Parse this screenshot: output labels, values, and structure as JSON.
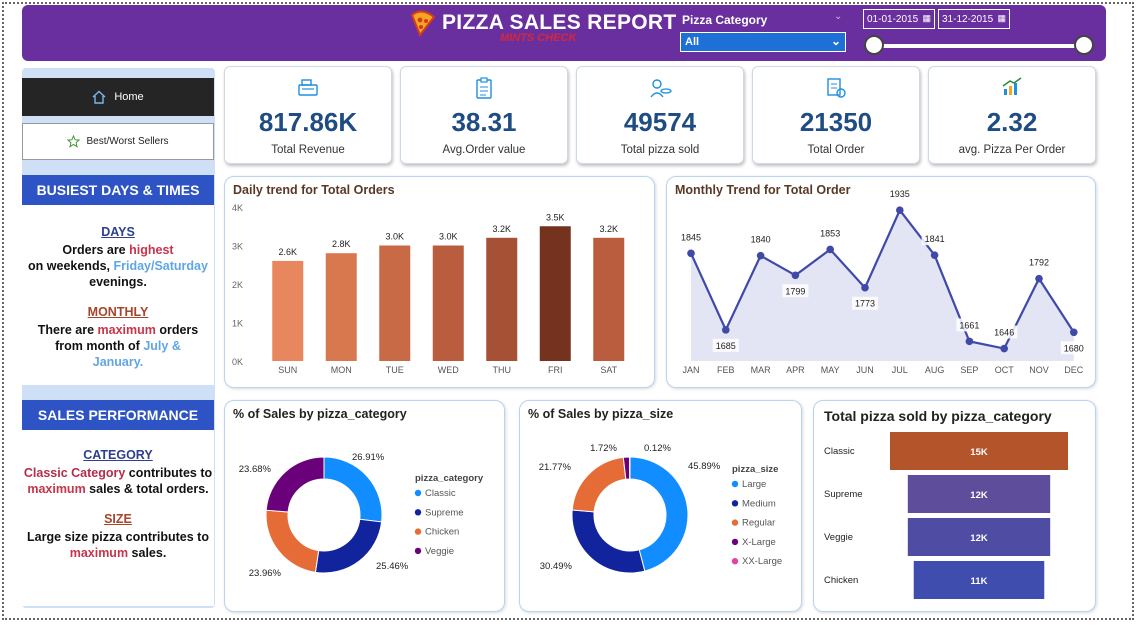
{
  "header": {
    "title": "PIZZA SALES REPORT",
    "subtitle": "MINTS CHECK",
    "category_label": "Pizza Category",
    "category_value": "All",
    "date_start": "01-01-2015",
    "date_end": "31-12-2015"
  },
  "nav": {
    "home": "Home",
    "best_worst": "Best/Worst Sellers"
  },
  "busiest": {
    "title": "BUSIEST DAYS & TIMES",
    "days_head": "DAYS",
    "days_l1a": "Orders are ",
    "days_l1b": "highest",
    "days_l2a": "on weekends, ",
    "days_l2b": "Friday/Saturday",
    "days_l3": "evenings.",
    "monthly_head": "MONTHLY",
    "monthly_l1a": "There are ",
    "monthly_l1b": "maximum",
    "monthly_l1c": " orders",
    "monthly_l2a": "from month of ",
    "monthly_l2b": "July &",
    "monthly_l3": "January."
  },
  "performance": {
    "title": "SALES PERFORMANCE",
    "category_head": "CATEGORY",
    "cat_l1a": "Classic Category",
    "cat_l1b": " contributes to",
    "cat_l2a": "maximum",
    "cat_l2b": " sales & total orders.",
    "size_head": "SIZE",
    "size_l1": "Large size pizza contributes to",
    "size_l2": "maximum",
    "size_l2b": " sales."
  },
  "kpis": [
    {
      "value": "817.86K",
      "label": "Total Revenue",
      "icon": "cash-register-icon"
    },
    {
      "value": "38.31",
      "label": "Avg.Order value",
      "icon": "clipboard-icon"
    },
    {
      "value": "49574",
      "label": "Total pizza sold",
      "icon": "pizza-chef-icon"
    },
    {
      "value": "21350",
      "label": "Total Order",
      "icon": "order-list-icon"
    },
    {
      "value": "2.32",
      "label": "avg. Pizza Per Order",
      "icon": "growth-chart-icon"
    }
  ],
  "colors": {
    "header": "#6a2f9e",
    "accent_blue": "#2d53c5",
    "kpi_value": "#1f4c83"
  },
  "chart_data": [
    {
      "type": "bar",
      "title": "Daily trend for Total Orders",
      "categories": [
        "SUN",
        "MON",
        "TUE",
        "WED",
        "THU",
        "FRI",
        "SAT"
      ],
      "values": [
        2.6,
        2.8,
        3.0,
        3.0,
        3.2,
        3.5,
        3.2
      ],
      "labels": [
        "2.6K",
        "2.8K",
        "3.0K",
        "3.0K",
        "3.2K",
        "3.5K",
        "3.2K"
      ],
      "colors": [
        "#e8875d",
        "#d8784f",
        "#c96a46",
        "#b95d3e",
        "#a65036",
        "#74321f",
        "#b95d3e"
      ],
      "yticks": [
        "0K",
        "1K",
        "2K",
        "3K",
        "4K"
      ],
      "ylim": [
        0,
        4
      ]
    },
    {
      "type": "area",
      "title": "Monthly Trend for Total Order",
      "categories": [
        "JAN",
        "FEB",
        "MAR",
        "APR",
        "MAY",
        "JUN",
        "JUL",
        "AUG",
        "SEP",
        "OCT",
        "NOV",
        "DEC"
      ],
      "values": [
        1845,
        1685,
        1840,
        1799,
        1853,
        1773,
        1935,
        1841,
        1661,
        1646,
        1792,
        1680
      ],
      "ylim": [
        1620,
        1950
      ]
    },
    {
      "type": "pie",
      "title": "% of Sales by pizza_category",
      "legend_title": "pizza_category",
      "labels": [
        "Classic",
        "Supreme",
        "Chicken",
        "Veggie"
      ],
      "values": [
        26.91,
        25.46,
        23.96,
        23.68
      ],
      "value_labels": [
        "26.91%",
        "25.46%",
        "23.96%",
        "23.68%"
      ],
      "colors": [
        "#118dff",
        "#12239e",
        "#e66c37",
        "#6b007b"
      ]
    },
    {
      "type": "pie",
      "title": "% of Sales by pizza_size",
      "legend_title": "pizza_size",
      "labels": [
        "Large",
        "Medium",
        "Regular",
        "X-Large",
        "XX-Large"
      ],
      "values": [
        45.89,
        30.49,
        21.77,
        1.72,
        0.12
      ],
      "value_labels": [
        "45.89%",
        "30.49%",
        "21.77%",
        "1.72%",
        "0.12%"
      ],
      "colors": [
        "#118dff",
        "#12239e",
        "#e66c37",
        "#6b007b",
        "#e044a7"
      ]
    },
    {
      "type": "bar",
      "title": "Total pizza sold by pizza_category",
      "categories": [
        "Classic",
        "Supreme",
        "Veggie",
        "Chicken"
      ],
      "values": [
        15,
        12,
        12,
        11
      ],
      "labels": [
        "15K",
        "12K",
        "12K",
        "11K"
      ],
      "colors": [
        "#b3542b",
        "#5e4d9b",
        "#4f4ca3",
        "#3f4dae"
      ]
    }
  ]
}
